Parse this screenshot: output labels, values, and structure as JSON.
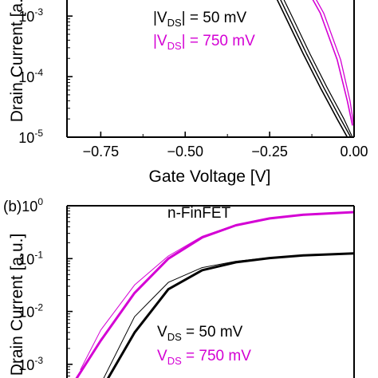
{
  "chart_data": [
    {
      "type": "line",
      "panel_label": "",
      "annotation": "",
      "xlabel": "Gate Voltage [V]",
      "ylabel": "Drain Current [a.u.]",
      "xlim": [
        -0.85,
        0.0
      ],
      "ylim_log10": [
        -5,
        -2.3
      ],
      "yscale": "log",
      "x_ticks": [
        {
          "v": -0.75,
          "label": "−0.75"
        },
        {
          "v": -0.5,
          "label": "−0.50"
        },
        {
          "v": -0.25,
          "label": "−0.25"
        },
        {
          "v": 0.0,
          "label": "0.00"
        }
      ],
      "y_ticks": [
        {
          "exp": -3,
          "base": "10",
          "sup": "-3"
        },
        {
          "exp": -4,
          "base": "10",
          "sup": "-4"
        },
        {
          "exp": -5,
          "base": "10",
          "sup": "-5"
        }
      ],
      "legend": [
        {
          "pre": "|V",
          "sub": "DS",
          "post": "| = 50 mV",
          "color": "#000000"
        },
        {
          "pre": "|V",
          "sub": "DS",
          "post": "| = 750 mV",
          "color": "#d400d4"
        }
      ],
      "series": [
        {
          "color": "#000000",
          "width": 1.6,
          "values": [
            [
              -0.265,
              -2.3
            ],
            [
              -0.2,
              -3.05
            ],
            [
              -0.15,
              -3.63
            ],
            [
              -0.1,
              -4.18
            ],
            [
              -0.05,
              -4.7
            ],
            [
              -0.02,
              -5.0
            ]
          ]
        },
        {
          "color": "#000000",
          "width": 1.4,
          "values": [
            [
              -0.255,
              -2.3
            ],
            [
              -0.19,
              -3.05
            ],
            [
              -0.14,
              -3.63
            ],
            [
              -0.09,
              -4.18
            ],
            [
              -0.04,
              -4.7
            ],
            [
              -0.01,
              -5.0
            ]
          ]
        },
        {
          "color": "#000000",
          "width": 1.2,
          "values": [
            [
              -0.245,
              -2.3
            ],
            [
              -0.18,
              -3.05
            ],
            [
              -0.13,
              -3.63
            ],
            [
              -0.08,
              -4.18
            ],
            [
              -0.03,
              -4.7
            ],
            [
              -0.005,
              -5.0
            ]
          ]
        },
        {
          "color": "#d400d4",
          "width": 1.6,
          "values": [
            [
              -0.165,
              -2.3
            ],
            [
              -0.1,
              -2.95
            ],
            [
              -0.05,
              -3.72
            ],
            [
              -0.02,
              -4.4
            ],
            [
              -0.005,
              -4.8
            ]
          ]
        },
        {
          "color": "#d400d4",
          "width": 1.3,
          "values": [
            [
              -0.155,
              -2.3
            ],
            [
              -0.09,
              -2.95
            ],
            [
              -0.04,
              -3.72
            ],
            [
              -0.012,
              -4.4
            ],
            [
              -0.001,
              -4.8
            ]
          ]
        }
      ]
    },
    {
      "type": "line",
      "panel_label": "(b)",
      "annotation": "n-FinFET",
      "xlabel": "",
      "ylabel": "Drain Current [a.u.]",
      "xlim": [
        0.0,
        0.85
      ],
      "ylim_log10": [
        -3.5,
        0
      ],
      "yscale": "log",
      "x_ticks": [],
      "y_ticks": [
        {
          "exp": 0,
          "base": "10",
          "sup": "0"
        },
        {
          "exp": -1,
          "base": "10",
          "sup": "-1"
        },
        {
          "exp": -2,
          "base": "10",
          "sup": "-2"
        },
        {
          "exp": -3,
          "base": "10",
          "sup": "-3"
        }
      ],
      "legend": [
        {
          "pre": "V",
          "sub": "DS",
          "post": " = 50 mV",
          "color": "#000000"
        },
        {
          "pre": "V",
          "sub": "DS",
          "post": " = 750 mV",
          "color": "#d400d4"
        }
      ],
      "series": [
        {
          "color": "#d400d4",
          "width": 1.0,
          "values": [
            [
              0.04,
              -3.1
            ],
            [
              0.1,
              -2.35
            ],
            [
              0.2,
              -1.5
            ],
            [
              0.3,
              -0.95
            ],
            [
              0.4,
              -0.58
            ],
            [
              0.5,
              -0.36
            ],
            [
              0.6,
              -0.24
            ],
            [
              0.7,
              -0.17
            ],
            [
              0.85,
              -0.12
            ]
          ]
        },
        {
          "color": "#d400d4",
          "width": 3.0,
          "values": [
            [
              0.005,
              -3.5
            ],
            [
              0.1,
              -2.55
            ],
            [
              0.2,
              -1.65
            ],
            [
              0.3,
              -1.0
            ],
            [
              0.4,
              -0.6
            ],
            [
              0.5,
              -0.37
            ],
            [
              0.6,
              -0.24
            ],
            [
              0.7,
              -0.17
            ],
            [
              0.85,
              -0.12
            ]
          ]
        },
        {
          "color": "#000000",
          "width": 1.0,
          "values": [
            [
              0.09,
              -3.5
            ],
            [
              0.2,
              -2.1
            ],
            [
              0.3,
              -1.45
            ],
            [
              0.4,
              -1.17
            ],
            [
              0.5,
              -1.05
            ],
            [
              0.6,
              -0.98
            ],
            [
              0.7,
              -0.94
            ],
            [
              0.85,
              -0.9
            ]
          ]
        },
        {
          "color": "#000000",
          "width": 3.0,
          "values": [
            [
              0.1,
              -3.5
            ],
            [
              0.2,
              -2.4
            ],
            [
              0.3,
              -1.58
            ],
            [
              0.4,
              -1.22
            ],
            [
              0.5,
              -1.07
            ],
            [
              0.6,
              -0.99
            ],
            [
              0.7,
              -0.94
            ],
            [
              0.85,
              -0.9
            ]
          ]
        }
      ]
    }
  ]
}
